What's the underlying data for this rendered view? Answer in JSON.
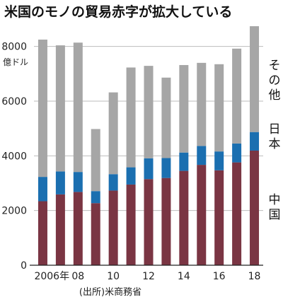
{
  "chart_data": {
    "type": "bar",
    "title": "米国のモノの貿易赤字が拡大している",
    "unit_label": "億ドル",
    "source": "(出所)米商務省",
    "ylim": [
      0,
      9000
    ],
    "yticks": [
      0,
      2000,
      4000,
      6000,
      8000
    ],
    "stacked": true,
    "grid": true,
    "legend_placement": "right",
    "categories": [
      "2006",
      "2007",
      "2008",
      "2009",
      "2010",
      "2011",
      "2012",
      "2013",
      "2014",
      "2015",
      "2016",
      "2017",
      "2018"
    ],
    "xtick_labels": [
      "2006年",
      "",
      "08",
      "",
      "10",
      "",
      "12",
      "",
      "14",
      "",
      "16",
      "",
      "18"
    ],
    "series": [
      {
        "name": "中国",
        "color": "#7a3543",
        "values": [
          2340,
          2590,
          2680,
          2270,
          2730,
          2950,
          3150,
          3190,
          3450,
          3670,
          3470,
          3760,
          4190
        ]
      },
      {
        "name": "日本",
        "color": "#1b6fb0",
        "values": [
          890,
          840,
          730,
          440,
          600,
          630,
          760,
          730,
          670,
          690,
          690,
          690,
          680
        ]
      },
      {
        "name": "その他",
        "color": "#a6a6a6",
        "values": [
          5020,
          4610,
          4730,
          2270,
          2990,
          3650,
          3380,
          2940,
          3200,
          3040,
          3190,
          3470,
          3870
        ]
      }
    ],
    "totals": [
      8250,
      8040,
      8140,
      4980,
      6320,
      7230,
      7290,
      6860,
      7320,
      7400,
      7350,
      7920,
      8740
    ]
  }
}
